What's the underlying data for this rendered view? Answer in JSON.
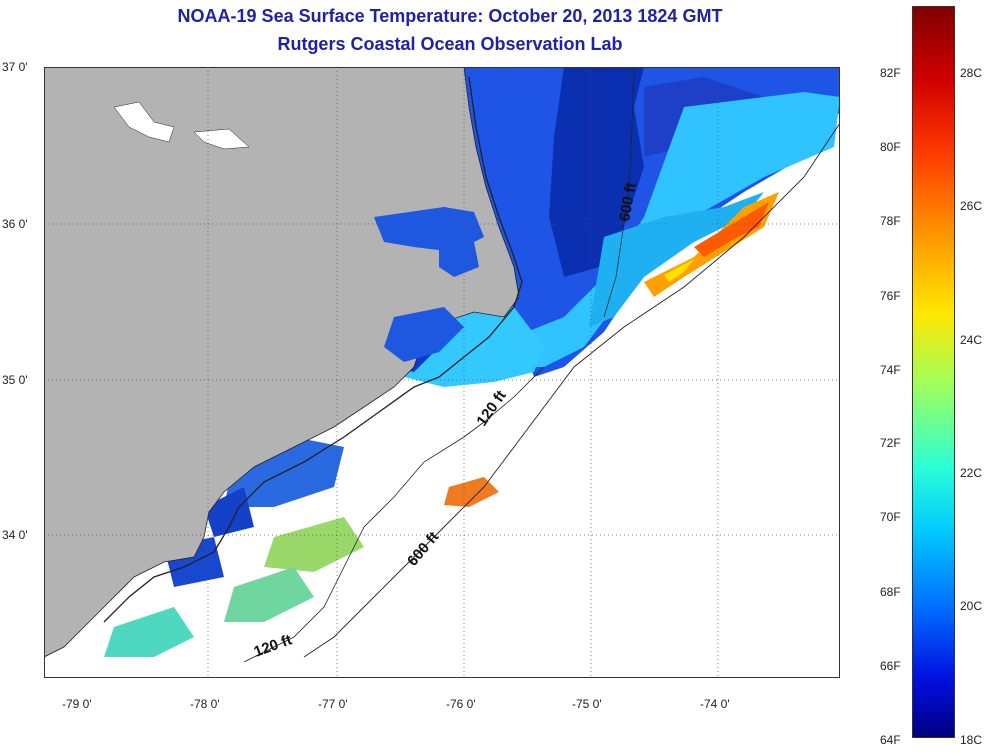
{
  "title": "NOAA-19 Sea Surface Temperature:  October 20, 2013 1824 GMT",
  "subtitle": "Rutgers Coastal Ocean Observation Lab",
  "colors": {
    "title": "#1f22a8",
    "land": "#b3b3b3",
    "cloud": "#ffffff"
  },
  "lat_labels": [
    "37 0'",
    "36 0'",
    "35 0'",
    "34 0'"
  ],
  "lon_labels": [
    "-79 0'",
    "-78 0'",
    "-77 0'",
    "-76 0'",
    "-75 0'",
    "-74 0'"
  ],
  "isobath_labels": [
    "120 ft",
    "120 ft",
    "600 ft",
    "600 ft"
  ],
  "colorbar": {
    "fahrenheit": [
      "82F",
      "80F",
      "78F",
      "76F",
      "74F",
      "72F",
      "70F",
      "68F",
      "66F",
      "64F"
    ],
    "celsius": [
      "28C",
      "26C",
      "24C",
      "22C",
      "20C",
      "18C"
    ]
  }
}
